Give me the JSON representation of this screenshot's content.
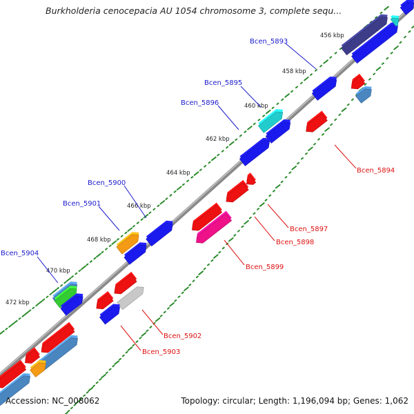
{
  "title": "Burkholderia cenocepacia AU 1054 chromosome 3, complete sequ...",
  "footer": {
    "accession": "Accession: NC_008062",
    "summary": "Topology: circular; Length: 1,196,094 bp; Genes: 1,062"
  },
  "colors": {
    "backbone": "#8a8a8a",
    "tick": "#2a8a2a",
    "forward_label": "#1a1acc",
    "reverse_label": "#dd1111",
    "blue": "#1a1aee",
    "red": "#ee1111",
    "steel": "#4a86c0",
    "orange": "#f49a14",
    "cyan": "#22cccc",
    "magenta": "#ee1188",
    "grey": "#c8c8c8",
    "purple": "#3c3c88",
    "green": "#33cc33"
  },
  "scale_labels": [
    "456 kbp",
    "458 kbp",
    "460 kbp",
    "462 kbp",
    "464 kbp",
    "466 kbp",
    "468 kbp",
    "470 kbp",
    "472 kbp"
  ],
  "gene_labels": {
    "forward": [
      "Bcen_5893",
      "Bcen_5895",
      "Bcen_5896",
      "Bcen_5900",
      "Bcen_5901",
      "Bcen_5904"
    ],
    "reverse": [
      "Bcen_5894",
      "Bcen_5897",
      "Bcen_5898",
      "Bcen_5899",
      "Bcen_5902",
      "Bcen_5903"
    ]
  }
}
